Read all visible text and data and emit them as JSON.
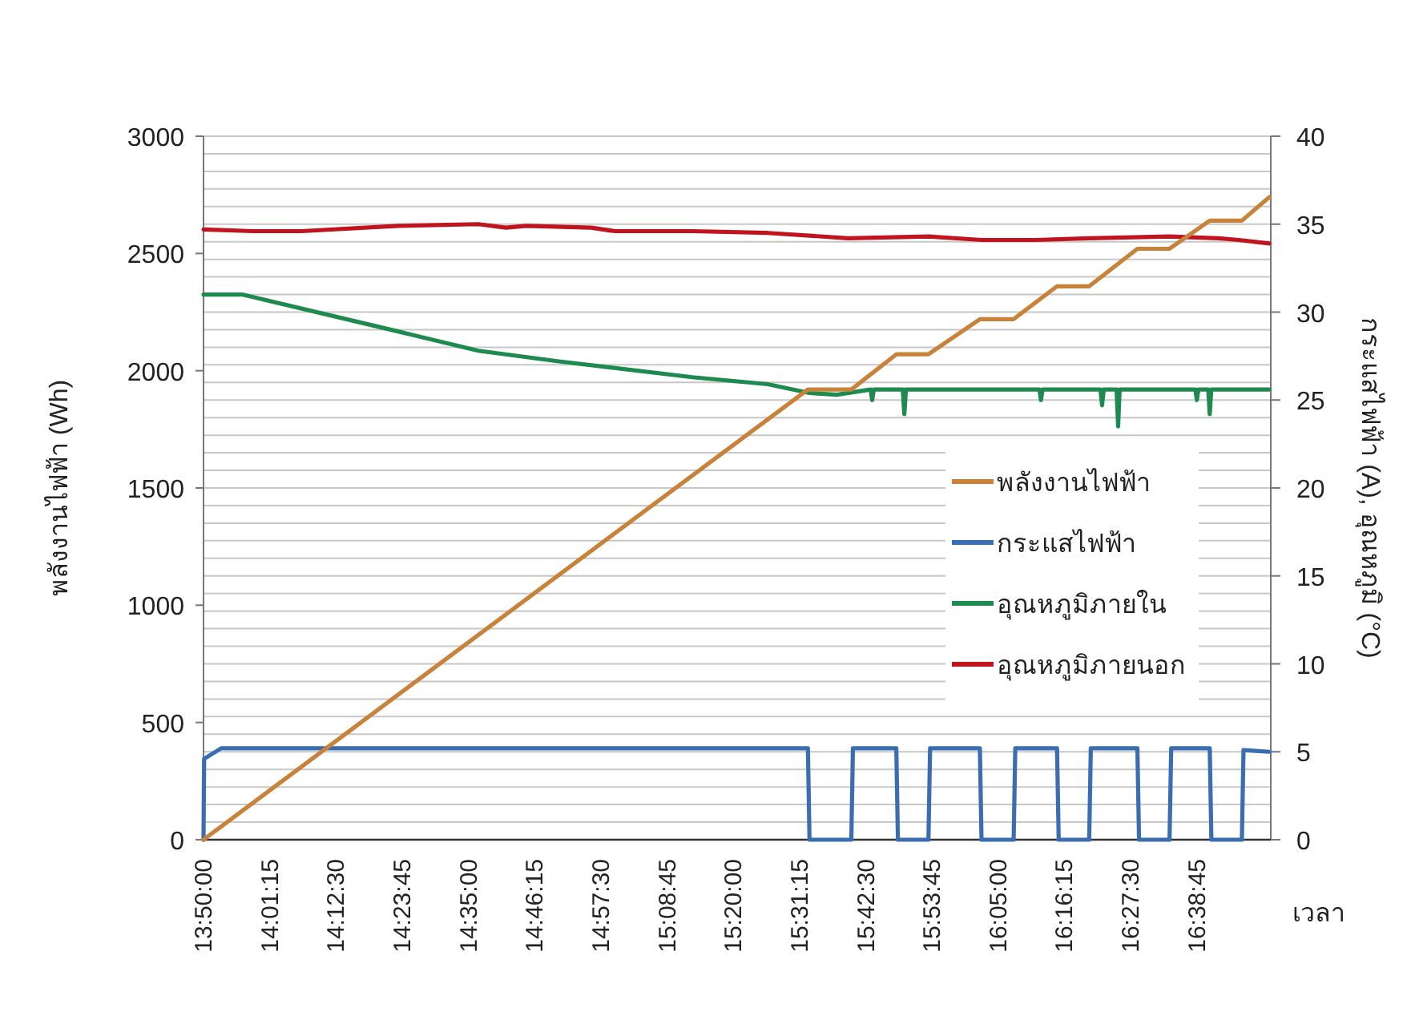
{
  "chart_data": {
    "type": "line",
    "xlabel": "เวลา",
    "ylabel": "พลังงานไฟฟ้า (Wh)",
    "y2label": "กระแสไฟฟ้า (A), อุณหภูมิ (°C)",
    "xlim": [
      13.8333,
      16.855
    ],
    "xticks": [
      {
        "value": 13.8333,
        "label": "13:50:00"
      },
      {
        "value": 14.0208,
        "label": "14:01:15"
      },
      {
        "value": 14.2083,
        "label": "14:12:30"
      },
      {
        "value": 14.3958,
        "label": "14:23:45"
      },
      {
        "value": 14.5833,
        "label": "14:35:00"
      },
      {
        "value": 14.7708,
        "label": "14:46:15"
      },
      {
        "value": 14.9583,
        "label": "14:57:30"
      },
      {
        "value": 15.1458,
        "label": "15:08:45"
      },
      {
        "value": 15.3333,
        "label": "15:20:00"
      },
      {
        "value": 15.5208,
        "label": "15:31:15"
      },
      {
        "value": 15.7083,
        "label": "15:42:30"
      },
      {
        "value": 15.8958,
        "label": "15:53:45"
      },
      {
        "value": 16.0833,
        "label": "16:05:00"
      },
      {
        "value": 16.2708,
        "label": "16:16:15"
      },
      {
        "value": 16.4583,
        "label": "16:27:30"
      },
      {
        "value": 16.6458,
        "label": "16:38:45"
      }
    ],
    "ylim": [
      0,
      3000
    ],
    "yticks": [
      0,
      500,
      1000,
      1500,
      2000,
      2500,
      3000
    ],
    "y2lim": [
      0,
      40
    ],
    "y2ticks": [
      0,
      {
        "value": 1,
        "label": null
      },
      {
        "value": 2,
        "label": null
      },
      {
        "value": 3,
        "label": null
      },
      {
        "value": 4,
        "label": null
      },
      5,
      {
        "value": 6,
        "label": null
      },
      {
        "value": 7,
        "label": null
      },
      {
        "value": 8,
        "label": null
      },
      {
        "value": 9,
        "label": null
      },
      10,
      {
        "value": 11,
        "label": null
      },
      {
        "value": 12,
        "label": null
      },
      {
        "value": 13,
        "label": null
      },
      {
        "value": 14,
        "label": null
      },
      15,
      {
        "value": 16,
        "label": null
      },
      {
        "value": 17,
        "label": null
      },
      {
        "value": 18,
        "label": null
      },
      {
        "value": 19,
        "label": null
      },
      20,
      {
        "value": 21,
        "label": null
      },
      {
        "value": 22,
        "label": null
      },
      {
        "value": 23,
        "label": null
      },
      {
        "value": 24,
        "label": null
      },
      25,
      {
        "value": 26,
        "label": null
      },
      {
        "value": 27,
        "label": null
      },
      {
        "value": 28,
        "label": null
      },
      {
        "value": 29,
        "label": null
      },
      30,
      {
        "value": 31,
        "label": null
      },
      {
        "value": 32,
        "label": null
      },
      {
        "value": 33,
        "label": null
      },
      {
        "value": 34,
        "label": null
      },
      35,
      {
        "value": 36,
        "label": null
      },
      {
        "value": 37,
        "label": null
      },
      {
        "value": 38,
        "label": null
      },
      {
        "value": 39,
        "label": null
      },
      40
    ],
    "grid": "y2",
    "legend": "right",
    "line_style": "solid",
    "series": [
      {
        "name": "พลังงานไฟฟ้า",
        "color": "#c8823a",
        "x": [
          13.8333,
          15.5445,
          15.6674,
          15.7948,
          15.8858,
          16.0314,
          16.127,
          16.2499,
          16.3409,
          16.4774,
          16.5684,
          16.6822,
          16.7732,
          16.8506
        ],
        "values": [
          0,
          1920,
          1920,
          2070,
          2070,
          2220,
          2220,
          2360,
          2360,
          2520,
          2520,
          2640,
          2640,
          2740
        ]
      },
      {
        "name": "กระแสไฟฟ้า",
        "color": "#3a6eb0",
        "axis": "y2",
        "x": [
          13.8333,
          13.835,
          13.8834,
          15.5445,
          15.549,
          15.6674,
          15.6719,
          15.7948,
          15.7993,
          15.8858,
          15.8904,
          16.0314,
          16.036,
          16.127,
          16.1316,
          16.2499,
          16.2545,
          16.3409,
          16.3455,
          16.4774,
          16.482,
          16.5684,
          16.573,
          16.6822,
          16.6868,
          16.7732,
          16.7778,
          16.8506
        ],
        "values": [
          0,
          4.6,
          5.2,
          5.2,
          0,
          0,
          5.2,
          5.2,
          0,
          0,
          5.2,
          5.2,
          0,
          0,
          5.2,
          5.2,
          0,
          0,
          5.2,
          5.2,
          0,
          0,
          5.2,
          5.2,
          0,
          0,
          5.1,
          5.0
        ]
      },
      {
        "name": "อุณหภูมิภายใน",
        "color": "#1f8a50",
        "axis": "y2",
        "x": [
          13.8333,
          13.9425,
          14.384,
          14.6115,
          14.8391,
          15.2168,
          15.4307,
          15.549,
          15.6264,
          15.722,
          15.7265,
          15.731,
          15.813,
          15.8175,
          15.822,
          16.2,
          16.2044,
          16.209,
          16.373,
          16.3773,
          16.382,
          16.4185,
          16.4228,
          16.427,
          16.6415,
          16.6458,
          16.65,
          16.678,
          16.6822,
          16.6865,
          16.8506
        ],
        "values": [
          31.0,
          31.0,
          28.9,
          27.8,
          27.2,
          26.3,
          25.9,
          25.4,
          25.3,
          25.6,
          25.0,
          25.6,
          25.6,
          24.2,
          25.6,
          25.6,
          25.0,
          25.6,
          25.6,
          24.7,
          25.6,
          25.6,
          23.5,
          25.6,
          25.6,
          25.0,
          25.6,
          25.6,
          24.2,
          25.6,
          25.6
        ]
      },
      {
        "name": "อุณหภูมิภายนอก",
        "color": "#c0141e",
        "axis": "y2",
        "x": [
          13.8333,
          13.9744,
          14.1109,
          14.384,
          14.6115,
          14.6889,
          14.748,
          14.9301,
          14.9984,
          15.2168,
          15.4307,
          15.6583,
          15.8858,
          16.036,
          16.1907,
          16.3409,
          16.5684,
          16.705,
          16.7641,
          16.8506
        ],
        "values": [
          34.7,
          34.6,
          34.6,
          34.9,
          35.0,
          34.8,
          34.9,
          34.8,
          34.6,
          34.6,
          34.5,
          34.2,
          34.3,
          34.1,
          34.1,
          34.2,
          34.3,
          34.2,
          34.1,
          33.9
        ]
      }
    ]
  }
}
